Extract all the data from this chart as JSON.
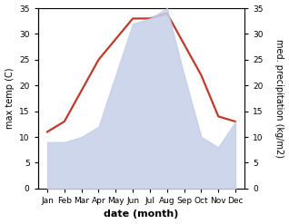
{
  "months": [
    "Jan",
    "Feb",
    "Mar",
    "Apr",
    "May",
    "Jun",
    "Jul",
    "Aug",
    "Sep",
    "Oct",
    "Nov",
    "Dec"
  ],
  "temperature": [
    11,
    13,
    19,
    25,
    29,
    33,
    33,
    34,
    28,
    22,
    14,
    13
  ],
  "precipitation": [
    9,
    9,
    10,
    12,
    22,
    32,
    33,
    35,
    22,
    10,
    8,
    13
  ],
  "temp_color": "#c0392b",
  "precip_fill_color": "#c5cfe8",
  "precip_fill_alpha": 0.85,
  "ylim": [
    0,
    35
  ],
  "yticks": [
    0,
    5,
    10,
    15,
    20,
    25,
    30,
    35
  ],
  "xlabel": "date (month)",
  "ylabel_left": "max temp (C)",
  "ylabel_right": "med. precipitation (kg/m2)",
  "bg_color": "#ffffff",
  "temp_linewidth": 1.6,
  "xlabel_fontsize": 8,
  "ylabel_fontsize": 7,
  "tick_fontsize": 6.5
}
